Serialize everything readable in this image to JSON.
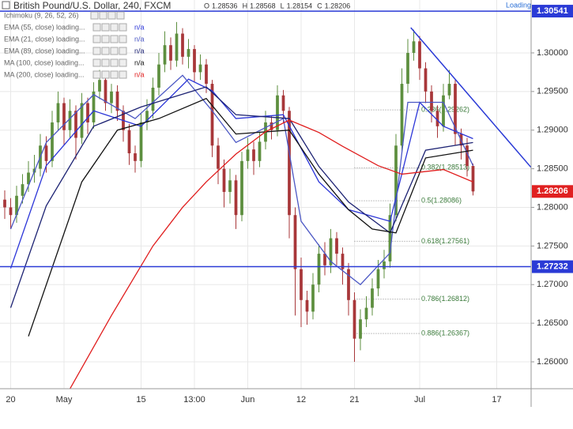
{
  "chart_data": {
    "type": "candlestick",
    "title": "British Pound/U.S. Dollar, 240, FXCM",
    "status": "Loading",
    "ohlc_labels": [
      "O",
      "H",
      "L",
      "C"
    ],
    "na_label": "n/a",
    "indicators": [
      {
        "name": "Ichimoku (9, 26, 52, 26)"
      }
    ],
    "up_color": "#5d8f3f",
    "down_color": "#a8373a",
    "ylim": [
      1.25652,
      1.30685
    ],
    "xlim": [
      -0.8,
      88.8
    ],
    "grid": true,
    "yticks": [
      {
        "value": 1.26,
        "label": "1.26000"
      },
      {
        "value": 1.265,
        "label": "1.26500"
      },
      {
        "value": 1.27,
        "label": "1.27000"
      },
      {
        "value": 1.275,
        "label": "1.27500"
      },
      {
        "value": 1.28,
        "label": "1.28000"
      },
      {
        "value": 1.285,
        "label": "1.28500"
      },
      {
        "value": 1.29,
        "label": "1.29000"
      },
      {
        "value": 1.295,
        "label": "1.29500"
      },
      {
        "value": 1.3,
        "label": "1.30000"
      }
    ],
    "categories": [
      null,
      "20",
      null,
      null,
      null,
      null,
      null,
      null,
      null,
      null,
      "May",
      null,
      null,
      null,
      null,
      null,
      null,
      null,
      null,
      null,
      null,
      null,
      null,
      "15",
      null,
      null,
      null,
      null,
      null,
      null,
      null,
      null,
      "13:00",
      null,
      null,
      null,
      null,
      null,
      null,
      null,
      null,
      "Jun",
      null,
      null,
      null,
      null,
      null,
      null,
      null,
      null,
      "12",
      null,
      null,
      null,
      null,
      null,
      null,
      null,
      null,
      "21",
      null,
      null,
      null,
      null,
      null,
      null,
      null,
      null,
      null,
      null,
      "Jul",
      null,
      null,
      null,
      null,
      null,
      null,
      null,
      null,
      null,
      null,
      null,
      null,
      "17",
      null,
      null,
      null,
      null,
      null
    ],
    "open": [
      1.281,
      1.28,
      1.279,
      1.2815,
      1.283,
      1.2845,
      1.285,
      1.288,
      1.286,
      1.291,
      1.2935,
      1.29,
      1.2925,
      1.289,
      1.2935,
      1.291,
      1.295,
      1.2965,
      1.2935,
      1.295,
      1.2925,
      1.29,
      1.287,
      1.286,
      1.291,
      1.2925,
      1.2955,
      1.2985,
      1.301,
      1.299,
      1.3025,
      1.2995,
      1.3005,
      1.2975,
      1.2985,
      1.296,
      1.288,
      1.285,
      1.282,
      1.2835,
      1.279,
      1.286,
      1.2875,
      1.286,
      1.2885,
      1.291,
      1.29,
      1.2945,
      1.2925,
      1.279,
      1.272,
      1.268,
      1.2665,
      1.27,
      1.274,
      1.2725,
      1.276,
      1.274,
      1.272,
      1.268,
      1.263,
      1.2655,
      1.267,
      1.2695,
      1.272,
      1.273,
      1.279,
      1.288,
      1.296,
      1.3,
      1.3015,
      1.298,
      1.295,
      1.2925,
      1.2905,
      1.2945,
      1.296,
      1.2895,
      1.288,
      1.28536,
      null,
      null,
      null,
      null,
      null,
      null,
      null,
      null,
      null
    ],
    "high": [
      1.2822,
      1.2812,
      1.2828,
      1.2843,
      1.286,
      1.2868,
      1.2895,
      1.2892,
      1.2925,
      1.295,
      1.2942,
      1.294,
      1.2932,
      1.2948,
      1.2942,
      1.2962,
      1.2978,
      1.297,
      1.296,
      1.2958,
      1.2932,
      1.2908,
      1.288,
      1.2922,
      1.294,
      1.2968,
      1.3,
      1.3028,
      1.302,
      1.304,
      1.3032,
      1.3018,
      1.301,
      1.2998,
      1.2992,
      1.2965,
      1.289,
      1.2862,
      1.285,
      1.2842,
      1.2872,
      1.289,
      1.2885,
      1.2898,
      1.2925,
      1.2918,
      1.2958,
      1.2952,
      1.293,
      1.28,
      1.2735,
      1.2692,
      1.2715,
      1.2752,
      1.2755,
      1.2772,
      1.2768,
      1.2748,
      1.2728,
      1.269,
      1.2668,
      1.2685,
      1.2708,
      1.2732,
      1.2745,
      1.2805,
      1.2895,
      1.298,
      1.3018,
      1.303,
      1.3022,
      1.2988,
      1.2958,
      1.2932,
      1.296,
      1.2978,
      1.2965,
      1.2902,
      1.289,
      1.28568,
      null,
      null,
      null,
      null,
      null,
      null,
      null,
      null,
      null
    ],
    "low": [
      1.2785,
      1.2772,
      1.278,
      1.2805,
      1.282,
      1.2832,
      1.284,
      1.2845,
      1.2852,
      1.29,
      1.288,
      1.289,
      1.2862,
      1.2882,
      1.2895,
      1.2902,
      1.294,
      1.2925,
      1.2922,
      1.2912,
      1.2885,
      1.2855,
      1.2845,
      1.2852,
      1.29,
      1.2915,
      1.2945,
      1.2975,
      1.2978,
      1.2982,
      1.2985,
      1.298,
      1.2962,
      1.2965,
      1.2948,
      1.2865,
      1.283,
      1.28,
      1.2805,
      1.2772,
      1.2782,
      1.285,
      1.2842,
      1.2852,
      1.2875,
      1.2888,
      1.2892,
      1.291,
      1.276,
      1.266,
      1.2645,
      1.2648,
      1.2655,
      1.269,
      1.2712,
      1.2715,
      1.2725,
      1.27,
      1.266,
      1.26,
      1.2615,
      1.2645,
      1.266,
      1.2685,
      1.2708,
      1.2722,
      1.2782,
      1.287,
      1.2948,
      1.299,
      1.2965,
      1.2935,
      1.291,
      1.289,
      1.2898,
      1.294,
      1.288,
      1.2862,
      1.284,
      1.28154,
      null,
      null,
      null,
      null,
      null,
      null,
      null,
      null,
      null
    ],
    "close": [
      1.28,
      1.279,
      1.2815,
      1.283,
      1.2845,
      1.285,
      1.288,
      1.286,
      1.291,
      1.2935,
      1.29,
      1.2925,
      1.289,
      1.2935,
      1.291,
      1.295,
      1.2965,
      1.2935,
      1.295,
      1.2925,
      1.29,
      1.287,
      1.286,
      1.291,
      1.2925,
      1.2955,
      1.2985,
      1.301,
      1.299,
      1.3025,
      1.2995,
      1.3005,
      1.2975,
      1.2985,
      1.296,
      1.288,
      1.285,
      1.282,
      1.2835,
      1.279,
      1.286,
      1.2875,
      1.286,
      1.2885,
      1.291,
      1.29,
      1.2945,
      1.2925,
      1.279,
      1.272,
      1.268,
      1.2665,
      1.27,
      1.274,
      1.2725,
      1.276,
      1.274,
      1.272,
      1.268,
      1.263,
      1.2655,
      1.267,
      1.2695,
      1.272,
      1.273,
      1.279,
      1.288,
      1.296,
      1.3,
      1.3015,
      1.298,
      1.295,
      1.2925,
      1.2905,
      1.2945,
      1.296,
      1.2895,
      1.288,
      1.28536,
      1.28206,
      null,
      null,
      null,
      null,
      null,
      null,
      null,
      null,
      null
    ],
    "series": [
      {
        "name": "EMA (55, close) loading...",
        "color": "#2b35d8",
        "x": [
          1,
          7,
          15,
          23,
          31,
          35,
          39,
          47,
          53,
          58,
          65,
          70,
          74,
          79
        ],
        "values": [
          1.2721,
          1.2854,
          1.2925,
          1.2905,
          1.2966,
          1.2951,
          1.2915,
          1.292,
          1.2833,
          1.2797,
          1.2782,
          1.2936,
          1.2905,
          1.2889
        ]
      },
      {
        "name": "EMA (21, close) loading...",
        "color": "#4b57c4",
        "x": [
          1,
          7,
          15,
          22,
          30,
          35,
          39,
          47,
          50,
          55,
          60,
          65,
          68,
          74,
          79
        ],
        "values": [
          1.2772,
          1.2884,
          1.2946,
          1.2915,
          1.2971,
          1.2925,
          1.2884,
          1.2915,
          1.2782,
          1.273,
          1.27,
          1.2741,
          1.2936,
          1.2936,
          1.2854
        ]
      },
      {
        "name": "EMA (89, close) loading...",
        "color": "#1c2273",
        "x": [
          1,
          7,
          15,
          23,
          34,
          39,
          48,
          53,
          58,
          65,
          71,
          79
        ],
        "values": [
          1.267,
          1.2802,
          1.2905,
          1.293,
          1.2956,
          1.292,
          1.2915,
          1.2853,
          1.2807,
          1.2767,
          1.2874,
          1.2884
        ]
      },
      {
        "name": "MA (100, close) loading...",
        "color": "#111111",
        "x": [
          4,
          13,
          19,
          26,
          34,
          39,
          48,
          53,
          58,
          62,
          66,
          71,
          79
        ],
        "values": [
          1.2633,
          1.2833,
          1.29,
          1.2915,
          1.2941,
          1.2895,
          1.29,
          1.2843,
          1.2797,
          1.2772,
          1.2767,
          1.2864,
          1.2874
        ]
      },
      {
        "name": "MA (200, close) loading...",
        "color": "#e01d1d",
        "x": [
          11,
          18,
          25,
          30,
          34,
          39,
          44,
          48,
          53,
          57,
          63,
          67,
          74,
          79
        ],
        "values": [
          1.2565,
          1.266,
          1.275,
          1.28,
          1.2833,
          1.2869,
          1.2898,
          1.2913,
          1.2897,
          1.2879,
          1.2854,
          1.2843,
          1.2849,
          1.2833
        ]
      }
    ],
    "horizontal_lines": [
      {
        "value": 1.30541,
        "color": "#2a3ad6"
      },
      {
        "value": 1.27232,
        "color": "#2a3ad6"
      }
    ],
    "trendline": {
      "x": [
        68.5,
        88.8
      ],
      "y": [
        1.30327,
        1.28517
      ],
      "color": "#2a3ad6"
    },
    "fib_x": [
      59,
      70
    ],
    "fib_levels": [
      {
        "label": "0.236(1.29262)",
        "value": 1.29262
      },
      {
        "label": "0.382(1.28513)",
        "value": 1.28513
      },
      {
        "label": "0.5(1.28086)",
        "value": 1.28086
      },
      {
        "label": "0.618(1.27561)",
        "value": 1.27561
      },
      {
        "label": "0.786(1.26812)",
        "value": 1.26812
      },
      {
        "label": "0.886(1.26367)",
        "value": 1.26367
      }
    ]
  }
}
